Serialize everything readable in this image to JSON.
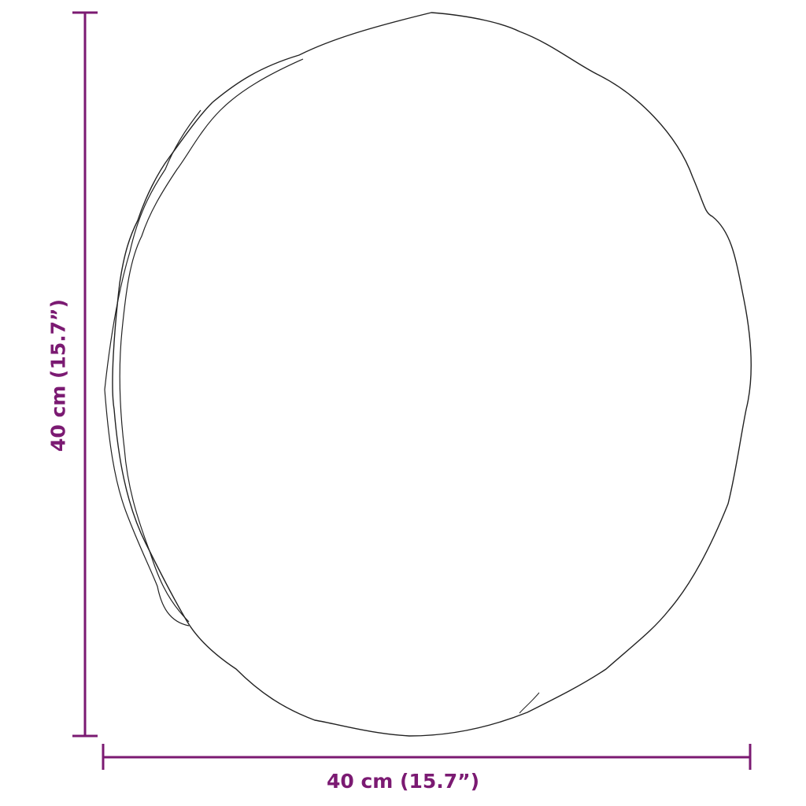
{
  "dimensions": {
    "width_label": "40 cm (15.7”)",
    "height_label": "40 cm (15.7”)"
  },
  "colors": {
    "dimension": "#7b1a72",
    "outline": "#222222"
  }
}
